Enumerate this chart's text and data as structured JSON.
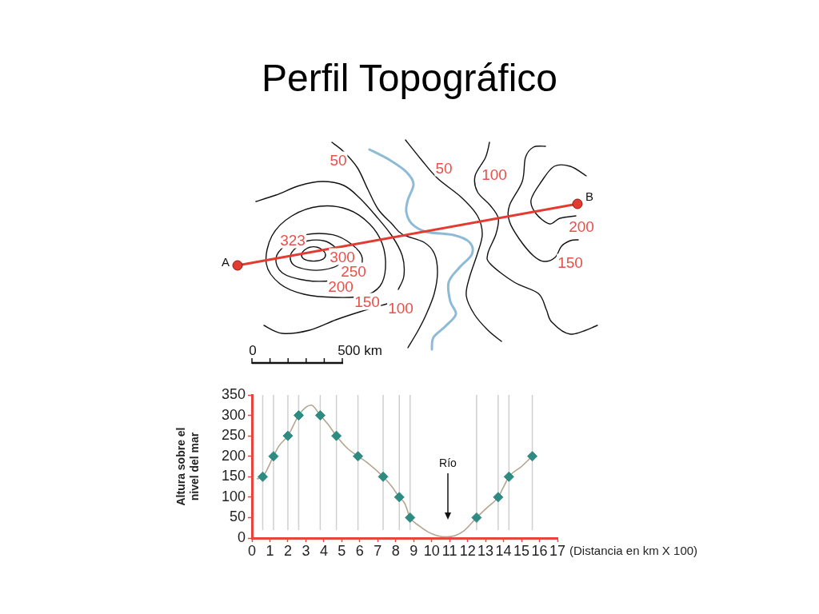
{
  "chart_data": [
    {
      "type": "other",
      "title": "Perfil Topográfico",
      "annotations": [
        "50",
        "50",
        "100",
        "323",
        "300",
        "250",
        "200",
        "150",
        "100",
        "200",
        "150",
        "A",
        "B",
        "0",
        "500 km"
      ]
    },
    {
      "type": "line",
      "ylabel": "Altura sobre el nivel del mar",
      "xlabel": "(Distancia en km X 100)",
      "xlim": [
        0,
        17
      ],
      "xticks": [
        0,
        1,
        2,
        3,
        4,
        5,
        6,
        7,
        8,
        9,
        10,
        11,
        12,
        13,
        14,
        15,
        16,
        17
      ],
      "ylim": [
        0,
        350
      ],
      "yticks": [
        0,
        50,
        100,
        150,
        200,
        250,
        300,
        350
      ],
      "series": [
        {
          "type": "line",
          "color": "#b3a58f",
          "x": [
            0.3,
            0.6,
            1.2,
            1.5,
            2.0,
            2.6,
            3.0,
            3.3,
            3.8,
            4.2,
            4.7,
            5.3,
            5.9,
            6.4,
            7.3,
            7.8,
            8.2,
            8.5,
            8.8,
            9.3,
            9.8,
            10.3,
            10.8,
            11.3,
            11.8,
            12.5,
            13.1,
            13.7,
            14.0,
            14.3,
            15.0,
            15.6
          ],
          "values": [
            145,
            150,
            200,
            225,
            250,
            300,
            320,
            325,
            300,
            280,
            250,
            220,
            200,
            185,
            150,
            125,
            100,
            85,
            50,
            30,
            15,
            6,
            3,
            6,
            18,
            50,
            75,
            100,
            125,
            150,
            175,
            200
          ]
        },
        {
          "type": "scatter",
          "color": "#2e8b82",
          "marker": "diamond",
          "x": [
            0.6,
            1.2,
            2.0,
            2.6,
            3.8,
            4.7,
            5.9,
            7.3,
            8.2,
            8.8,
            12.5,
            13.7,
            14.3,
            15.6
          ],
          "values": [
            150,
            200,
            250,
            300,
            300,
            250,
            200,
            150,
            100,
            50,
            50,
            100,
            150,
            200
          ]
        }
      ],
      "ref_lines": [
        {
          "axis": "x",
          "value": 0.6,
          "color": "#cfcfcf"
        },
        {
          "axis": "x",
          "value": 1.2,
          "color": "#cfcfcf"
        },
        {
          "axis": "x",
          "value": 2.0,
          "color": "#cfcfcf"
        },
        {
          "axis": "x",
          "value": 2.6,
          "color": "#cfcfcf"
        },
        {
          "axis": "x",
          "value": 3.8,
          "color": "#cfcfcf"
        },
        {
          "axis": "x",
          "value": 4.7,
          "color": "#cfcfcf"
        },
        {
          "axis": "x",
          "value": 5.9,
          "color": "#cfcfcf"
        },
        {
          "axis": "x",
          "value": 7.3,
          "color": "#cfcfcf"
        },
        {
          "axis": "x",
          "value": 8.2,
          "color": "#cfcfcf"
        },
        {
          "axis": "x",
          "value": 8.8,
          "color": "#cfcfcf"
        },
        {
          "axis": "x",
          "value": 12.5,
          "color": "#cfcfcf"
        },
        {
          "axis": "x",
          "value": 13.7,
          "color": "#cfcfcf"
        },
        {
          "axis": "x",
          "value": 14.3,
          "color": "#cfcfcf"
        },
        {
          "axis": "x",
          "value": 15.6,
          "color": "#cfcfcf"
        }
      ],
      "annotations": [
        "Río"
      ],
      "legend": false
    }
  ]
}
